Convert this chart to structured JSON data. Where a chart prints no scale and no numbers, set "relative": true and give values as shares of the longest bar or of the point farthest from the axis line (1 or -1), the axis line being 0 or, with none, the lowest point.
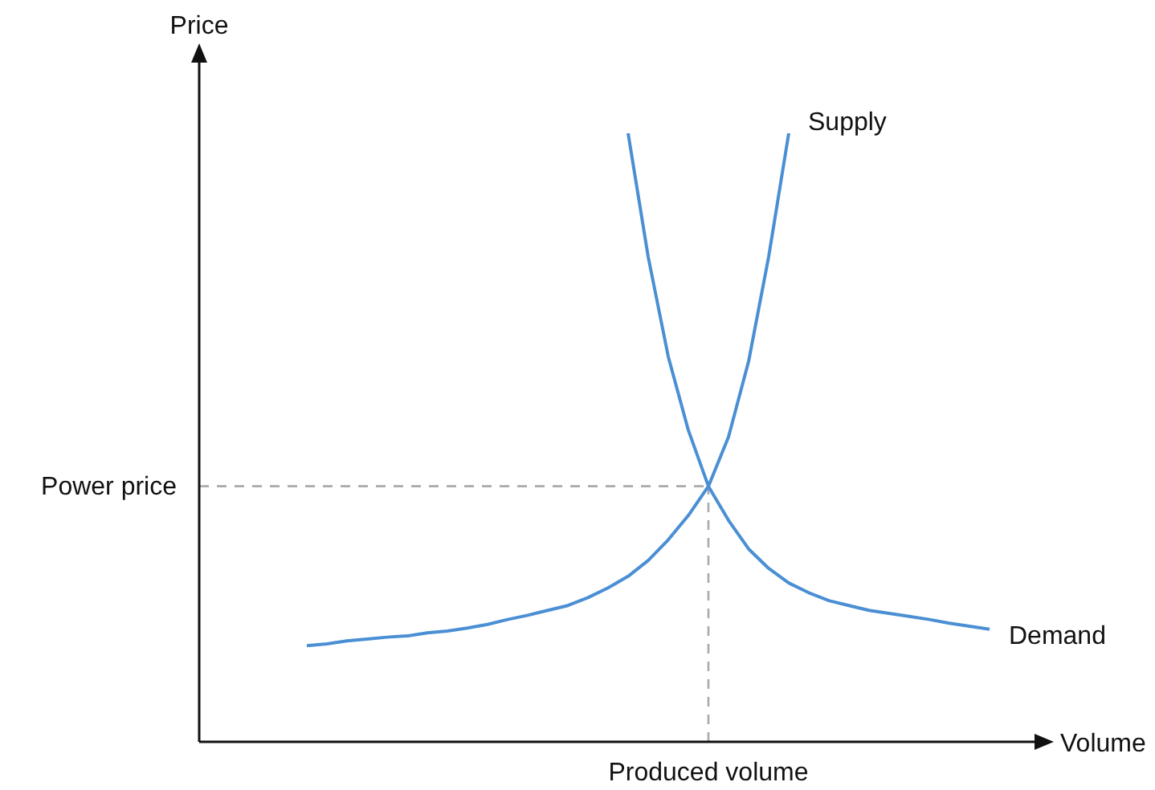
{
  "chart_data": {
    "type": "line",
    "relative": true,
    "xlabel": "Volume",
    "ylabel": "Price",
    "line_style": "solid",
    "categories": [
      null,
      null,
      null,
      null,
      null,
      null,
      null,
      null,
      null,
      null,
      null,
      null,
      null,
      null,
      null,
      null,
      null,
      null,
      null,
      null,
      null,
      null,
      null,
      null,
      null,
      null,
      null,
      null,
      null,
      null,
      null,
      null,
      null,
      null,
      null
    ],
    "series": [
      {
        "name": "Supply",
        "color": "#4a8fd4",
        "values": [
          0.158,
          0.161,
          0.166,
          0.169,
          0.172,
          0.174,
          0.179,
          0.182,
          0.187,
          0.193,
          0.201,
          0.208,
          0.216,
          0.224,
          0.237,
          0.253,
          0.272,
          0.298,
          0.332,
          0.372,
          0.42,
          0.501,
          0.625,
          0.797,
          1,
          null,
          null,
          null,
          null,
          null,
          null,
          null,
          null,
          null,
          null
        ]
      },
      {
        "name": "Demand",
        "color": "#4a8fd4",
        "values": [
          null,
          null,
          null,
          null,
          null,
          null,
          null,
          null,
          null,
          null,
          null,
          null,
          null,
          null,
          null,
          null,
          1,
          0.797,
          0.633,
          0.512,
          0.42,
          0.364,
          0.317,
          0.285,
          0.261,
          0.245,
          0.232,
          0.224,
          0.216,
          0.211,
          0.206,
          0.201,
          0.195,
          0.19,
          0.185
        ]
      }
    ],
    "annotations": [
      "Produced volume"
    ],
    "ref_lines": [
      {
        "axis": "y",
        "value": 0.42,
        "label": "Power price",
        "color": "#aaaaaa",
        "line_style": "dashed"
      }
    ]
  }
}
